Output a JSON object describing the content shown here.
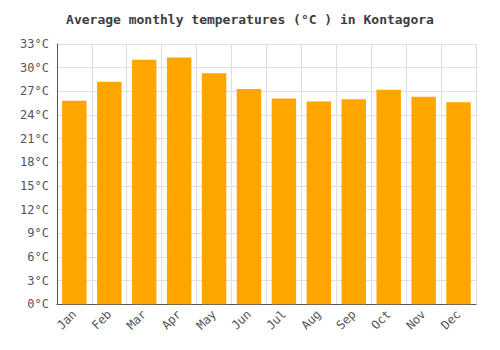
{
  "chart_data": {
    "type": "bar",
    "title": "Average monthly temperatures (°C ) in Kontagora",
    "categories": [
      "Jan",
      "Feb",
      "Mar",
      "Apr",
      "May",
      "Jun",
      "Jul",
      "Aug",
      "Sep",
      "Oct",
      "Nov",
      "Dec"
    ],
    "values": [
      25.8,
      28.2,
      31.0,
      31.3,
      29.3,
      27.3,
      26.1,
      25.7,
      26.0,
      27.2,
      26.3,
      25.6
    ],
    "color": "#FFA500",
    "ylim": [
      0,
      33
    ],
    "yticks": [
      {
        "value": 0,
        "label": "0°C"
      },
      {
        "value": 3,
        "label": "3°C"
      },
      {
        "value": 6,
        "label": "6°C"
      },
      {
        "value": 9,
        "label": "9°C"
      },
      {
        "value": 12,
        "label": "12°C"
      },
      {
        "value": 15,
        "label": "15°C"
      },
      {
        "value": 18,
        "label": "18°C"
      },
      {
        "value": 21,
        "label": "21°C"
      },
      {
        "value": 24,
        "label": "24°C"
      },
      {
        "value": 27,
        "label": "27°C"
      },
      {
        "value": 30,
        "label": "30°C"
      },
      {
        "value": 33,
        "label": "33°C"
      }
    ],
    "grid": true
  }
}
